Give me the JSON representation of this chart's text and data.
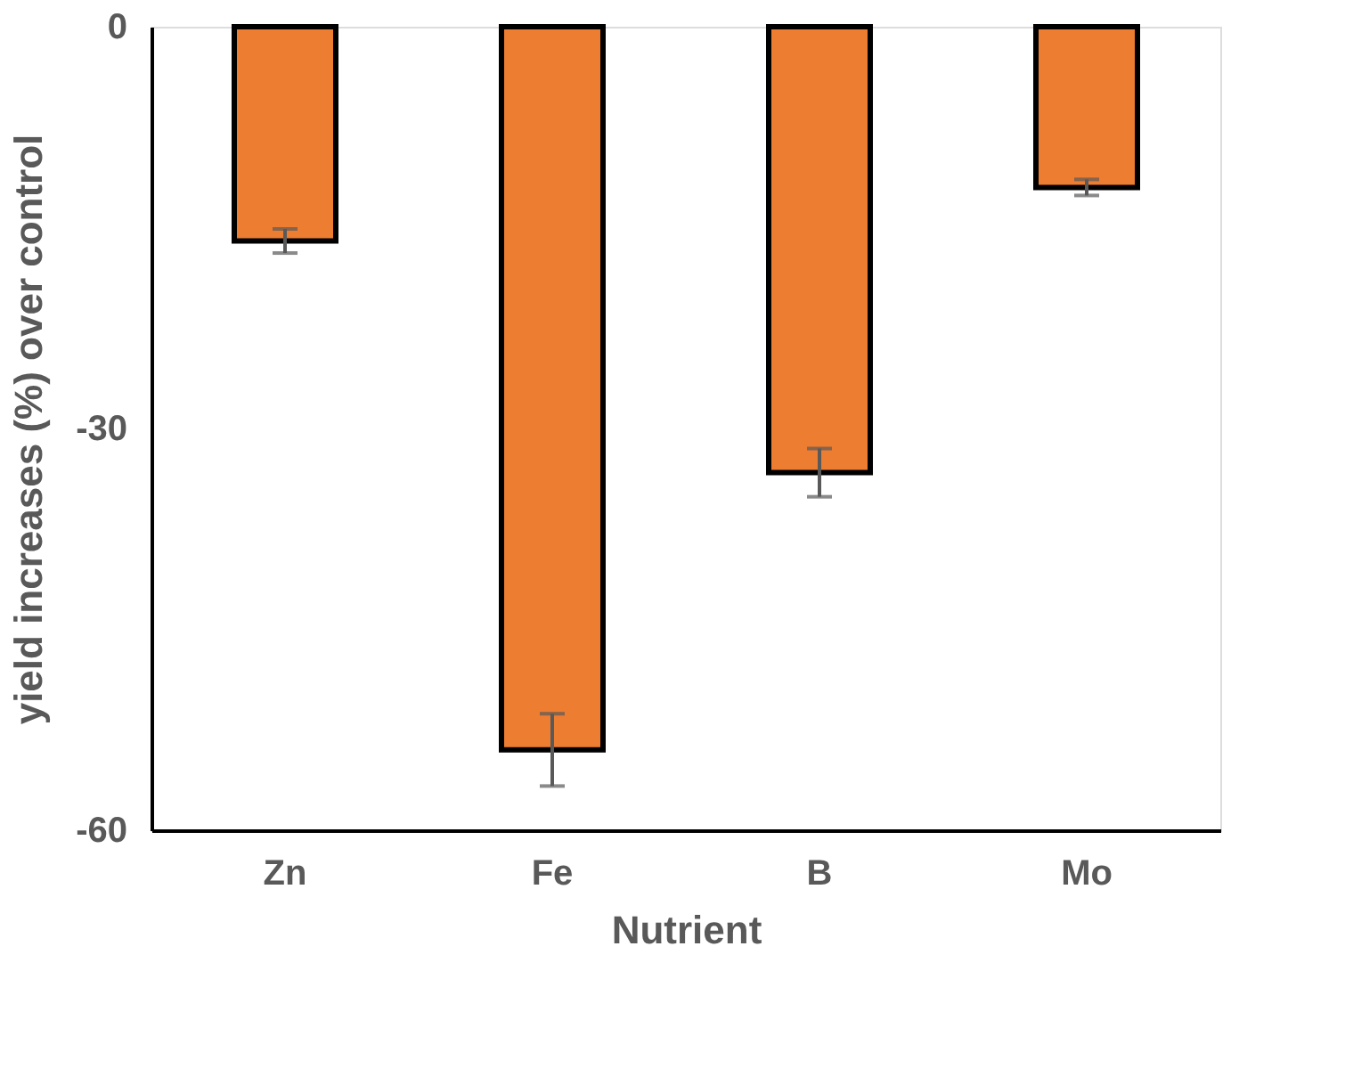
{
  "chart_data": {
    "type": "bar",
    "xlabel": "Nutrient",
    "ylabel": "yield increases (%) over control",
    "categories": [
      "Zn",
      "Fe",
      "B",
      "Mo"
    ],
    "values": [
      -16.0,
      -54.0,
      -33.3,
      -12.0
    ],
    "errors": [
      0.9,
      2.7,
      1.8,
      0.6
    ],
    "color": "#ed7d31",
    "ylim": [
      -60,
      0
    ],
    "yticks": [
      -60,
      -30,
      0
    ],
    "grid": false
  }
}
